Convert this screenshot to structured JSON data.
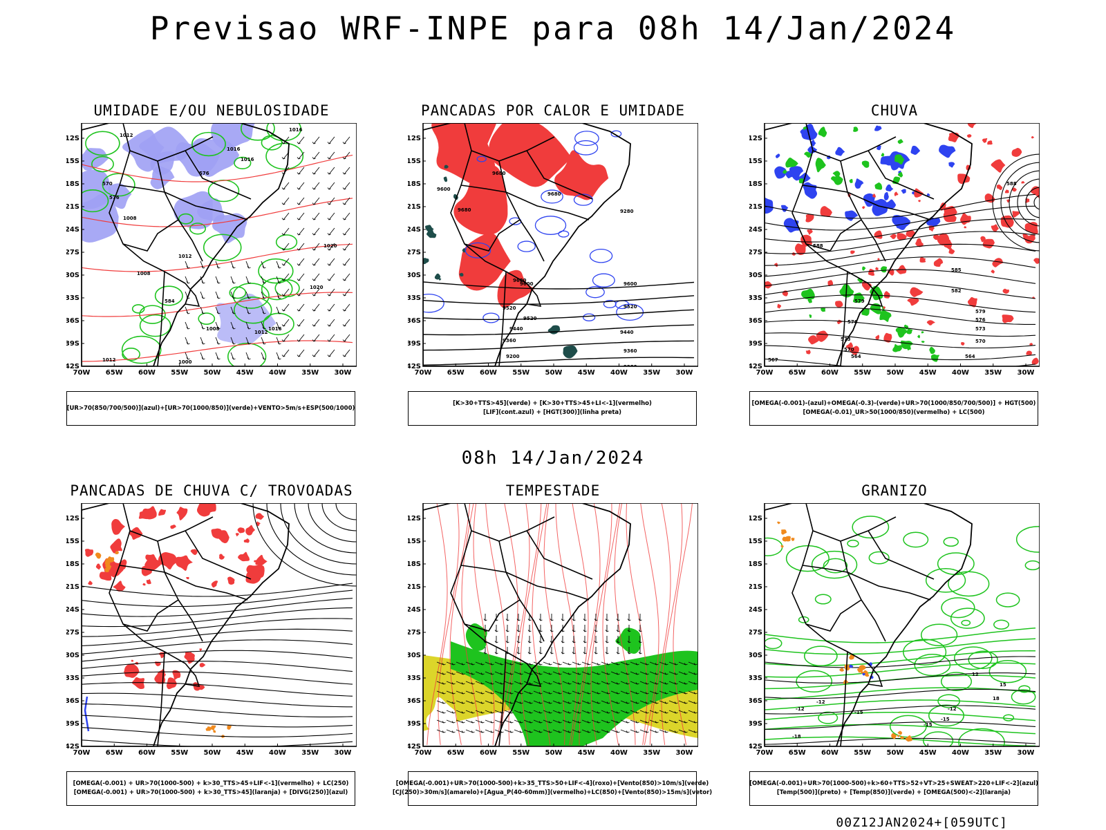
{
  "title": "Previsao WRF-INPE  para 08h 14/Jan/2024",
  "row_title": "08h 14/Jan/2024",
  "footer": "00Z12JAN2024+[059UTC]",
  "axis": {
    "lat_labels": [
      "12S",
      "15S",
      "18S",
      "21S",
      "24S",
      "27S",
      "30S",
      "33S",
      "36S",
      "39S",
      "42S"
    ],
    "lon_labels": [
      "70W",
      "65W",
      "60W",
      "55W",
      "50W",
      "45W",
      "40W",
      "35W",
      "30W"
    ]
  },
  "colors": {
    "green": "#1ec31e",
    "blue": "#2e43f0",
    "lavender": "#9ea0f4",
    "red": "#f03c3c",
    "yellow": "#dcd52a",
    "orange": "#f08a1e",
    "darkgreen": "#1e4d4a"
  },
  "panels": [
    {
      "title": "UMIDADE E/OU NEBULOSIDADE",
      "legend": [
        "[UR>70(850/700/500)](azul)+[UR>70(1000/850)](verde)+VENTO>5m/s+ESP(500/1000)"
      ],
      "contour_labels": [
        "1012",
        "1016",
        "1016",
        "1016",
        "1008",
        "1012",
        "1008",
        "1012",
        "1016",
        "1020",
        "1008",
        "1012",
        "1000",
        "576",
        "570",
        "576",
        "584",
        "1020"
      ]
    },
    {
      "title": "PANCADAS POR CALOR E UMIDADE",
      "legend": [
        "[K>30+TTS>45](verde) + [K>30+TTS>45+LI<-1](vermelho)",
        "[LIF](cont.azul) + [HGT(300)](linha preta)"
      ],
      "contour_labels": [
        "9680",
        "9680",
        "9600",
        "9680",
        "9520",
        "9600",
        "9600",
        "9520",
        "9440",
        "9360",
        "9280",
        "9200",
        "9600",
        "9520",
        "9440",
        "9360",
        "9280"
      ]
    },
    {
      "title": "CHUVA",
      "legend": [
        "[OMEGA(-0.001)-(azul)+OMEGA(-0.3)-(verde)+UR>70(1000/850/700/500)] + HGT(500)",
        "[OMEGA(-0.01)_UR>50(1000/850)(vermelho) + LC(500)"
      ],
      "contour_labels": [
        "588",
        "588",
        "582",
        "579",
        "576",
        "573",
        "570",
        "564",
        "567",
        "585",
        "579",
        "576",
        "573",
        "570",
        "564"
      ]
    },
    {
      "title": "PANCADAS DE CHUVA C/ TROVOADAS",
      "legend": [
        "[OMEGA(-0.001) + UR>70(1000-500) + k>30_TTS>45+LIF<-1](vermelho) + LC(250)",
        "[OMEGA(-0.001) + UR>70(1000-500) + k>30_TTS>45](laranja) + [DIVG(250)](azul)"
      ],
      "contour_labels": []
    },
    {
      "title": "TEMPESTADE",
      "legend": [
        "[OMEGA(-0.001)+UR>70(1000-500)+k>35_TTS>50+LIF<-4](roxo)+[Vento(850)>10m/s](verde)",
        "[CJ(250)>30m/s](amarelo)+[Agua_P(40-60mm)](vermelho)+LC(850)+[Vento(850)>15m/s](vetor)"
      ],
      "contour_labels": []
    },
    {
      "title": "GRANIZO",
      "legend": [
        "[OMEGA(-0.001)+UR>70(1000-500)+k>60+TTS>52+VT>25+SWEAT>220+LIF<-2](azul)",
        "[Temp(500)](preto) + [Temp(850)](verde) + [OMEGA(500)<-2](laranja)"
      ],
      "contour_labels": [
        "-12",
        "-12",
        "-15",
        "-15",
        "-18",
        "-12",
        "-15",
        "12",
        "15",
        "18"
      ]
    }
  ]
}
